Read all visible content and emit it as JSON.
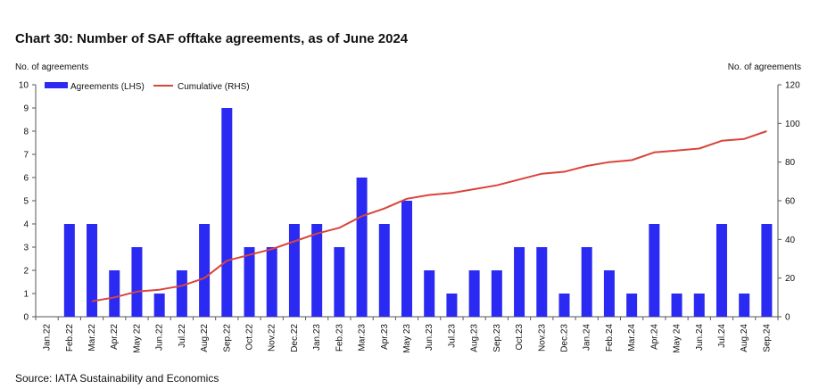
{
  "title": "Chart 30: Number of SAF offtake agreements, as of June 2024",
  "source": "Source: IATA Sustainability and Economics",
  "chart_data": {
    "type": "bar",
    "categories": [
      "Jan.22",
      "Feb.22",
      "Mar.22",
      "Apr.22",
      "May 22",
      "Jun.22",
      "Jul.22",
      "Aug.22",
      "Sep.22",
      "Oct.22",
      "Nov.22",
      "Dec.22",
      "Jan.23",
      "Feb.23",
      "Mar.23",
      "Apr.23",
      "May 23",
      "Jun.23",
      "Jul.23",
      "Aug.23",
      "Sep.23",
      "Oct.23",
      "Nov.23",
      "Dec.23",
      "Jan.24",
      "Feb.24",
      "Mar.24",
      "Apr.24",
      "May 24",
      "Jun.24",
      "Jul.24",
      "Aug.24",
      "Sep.24"
    ],
    "series": [
      {
        "name": "Agreements (LHS)",
        "type": "bar",
        "axis": "left",
        "color": "#2a2af2",
        "values": [
          0,
          4,
          4,
          2,
          3,
          1,
          2,
          4,
          9,
          3,
          3,
          4,
          4,
          3,
          6,
          4,
          5,
          2,
          1,
          2,
          2,
          3,
          3,
          1,
          3,
          2,
          1,
          4,
          1,
          1,
          4,
          1,
          4
        ]
      },
      {
        "name": "Cumulative (RHS)",
        "type": "line",
        "axis": "right",
        "color": "#d9443c",
        "values": [
          null,
          null,
          8,
          10,
          13,
          14,
          16,
          20,
          29,
          32,
          35,
          39,
          43,
          46,
          52,
          56,
          61,
          63,
          64,
          66,
          68,
          71,
          74,
          75,
          78,
          80,
          81,
          85,
          86,
          87,
          91,
          92,
          96
        ]
      }
    ],
    "ylabel_left": "No. of agreements",
    "ylabel_right": "No. of agreements",
    "ylim_left": [
      0,
      10
    ],
    "ylim_right": [
      0,
      120
    ],
    "yticks_left": [
      0,
      1,
      2,
      3,
      4,
      5,
      6,
      7,
      8,
      9,
      10
    ],
    "yticks_right": [
      0,
      20,
      40,
      60,
      80,
      100,
      120
    ],
    "legend_position": "top-left",
    "grid": false
  }
}
